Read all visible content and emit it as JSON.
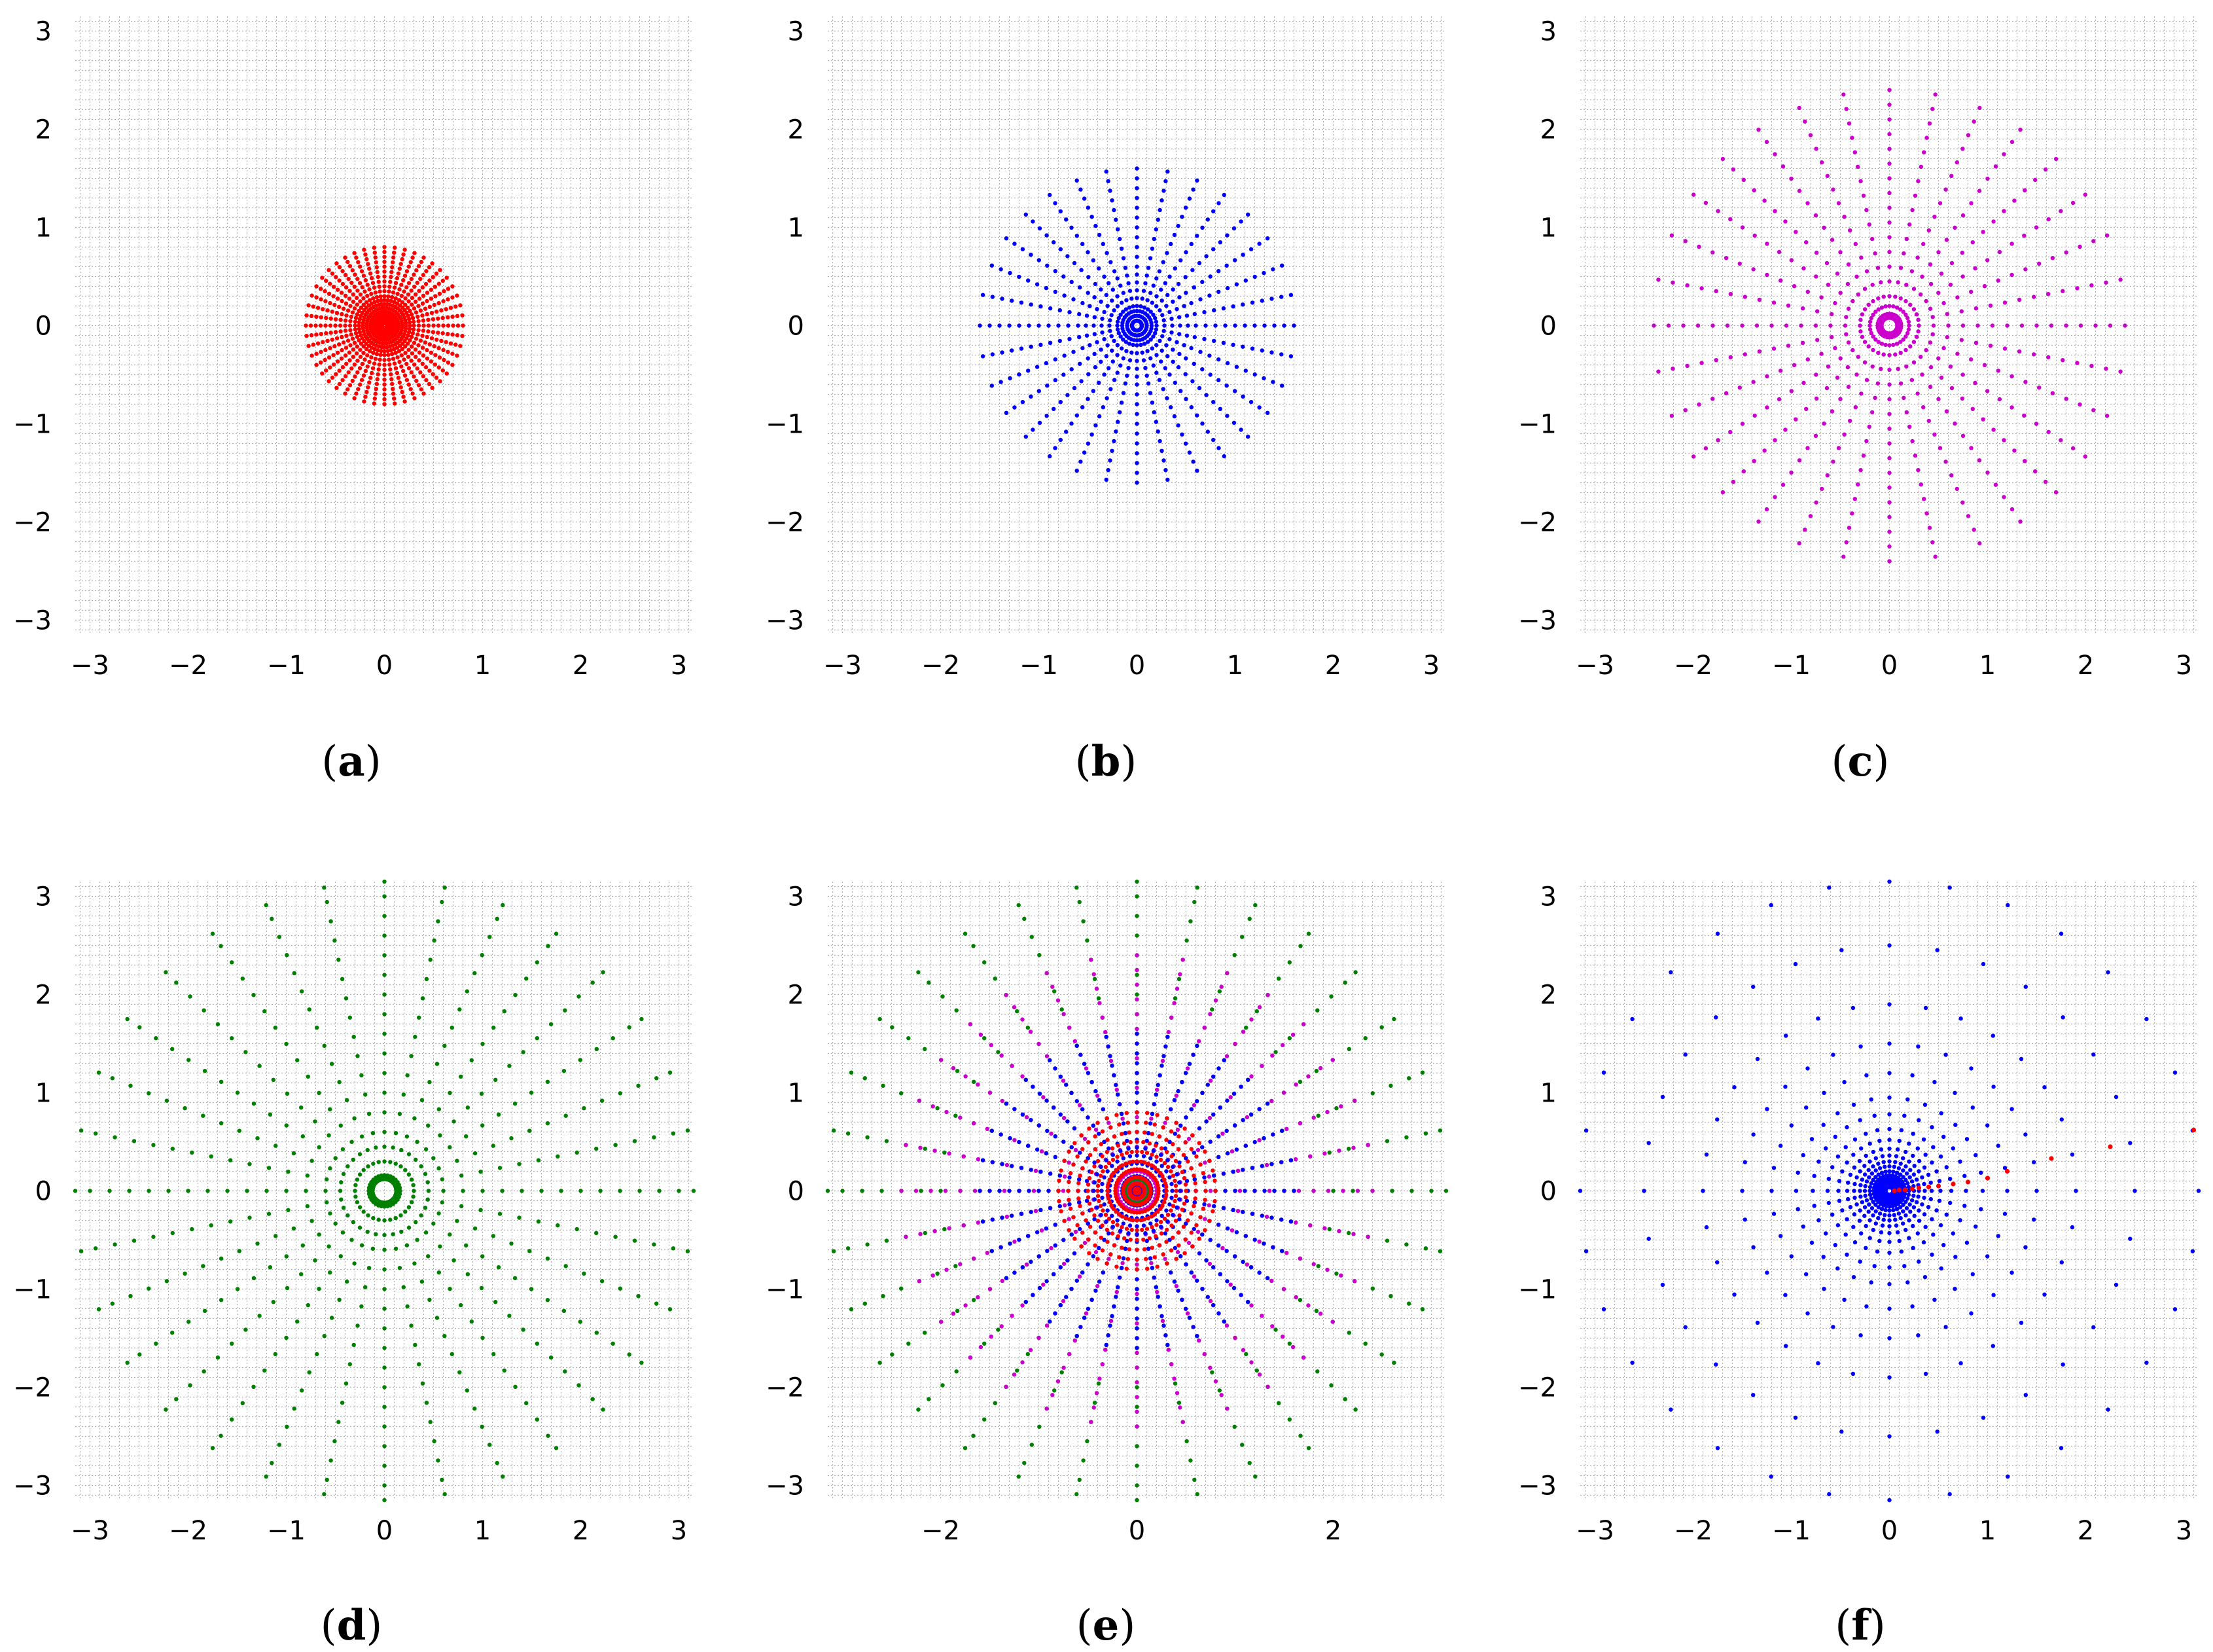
{
  "chart_data": [
    {
      "type": "scatter",
      "label": "(a)",
      "label_letter": "a",
      "title": "",
      "xlabel": "",
      "ylabel": "",
      "xlim": [
        -3.15,
        3.15
      ],
      "ylim": [
        -3.15,
        3.15
      ],
      "xticks": [
        "−3",
        "−2",
        "−1",
        "0",
        "1",
        "2",
        "3"
      ],
      "xtick_values": [
        -3,
        -2,
        -1,
        0,
        1,
        2,
        3
      ],
      "yticks": [
        "−3",
        "−2",
        "−1",
        "0",
        "1",
        "2",
        "3"
      ],
      "ytick_values": [
        -3,
        -2,
        -1,
        0,
        1,
        2,
        3
      ],
      "grid": true,
      "series": [
        {
          "color": "#ff0000",
          "pattern": "polar-grid",
          "rays": 48,
          "radii": [
            0.025,
            0.05,
            0.075,
            0.1,
            0.14,
            0.18,
            0.22,
            0.26,
            0.3,
            0.35,
            0.4,
            0.45,
            0.5,
            0.55,
            0.6,
            0.65,
            0.7,
            0.75,
            0.8
          ]
        }
      ]
    },
    {
      "type": "scatter",
      "label": "(b)",
      "label_letter": "b",
      "title": "",
      "xlabel": "",
      "ylabel": "",
      "xlim": [
        -3.15,
        3.15
      ],
      "ylim": [
        -3.15,
        3.15
      ],
      "xticks": [
        "−3",
        "−2",
        "−1",
        "0",
        "1",
        "2",
        "3"
      ],
      "xtick_values": [
        -3,
        -2,
        -1,
        0,
        1,
        2,
        3
      ],
      "yticks": [
        "−3",
        "−2",
        "−1",
        "0",
        "1",
        "2",
        "3"
      ],
      "ytick_values": [
        -3,
        -2,
        -1,
        0,
        1,
        2,
        3
      ],
      "grid": true,
      "series": [
        {
          "color": "#0000ff",
          "pattern": "polar-grid",
          "rays": 32,
          "radii": [
            0.05,
            0.1,
            0.15,
            0.2,
            0.28,
            0.36,
            0.44,
            0.52,
            0.6,
            0.7,
            0.8,
            0.9,
            1.0,
            1.1,
            1.2,
            1.3,
            1.4,
            1.5,
            1.6
          ]
        }
      ]
    },
    {
      "type": "scatter",
      "label": "(c)",
      "label_letter": "c",
      "title": "",
      "xlabel": "",
      "ylabel": "",
      "xlim": [
        -3.15,
        3.15
      ],
      "ylim": [
        -3.15,
        3.15
      ],
      "xticks": [
        "−3",
        "−2",
        "−1",
        "0",
        "1",
        "2",
        "3"
      ],
      "xtick_values": [
        -3,
        -2,
        -1,
        0,
        1,
        2,
        3
      ],
      "yticks": [
        "−3",
        "−2",
        "−1",
        "0",
        "1",
        "2",
        "3"
      ],
      "ytick_values": [
        -3,
        -2,
        -1,
        0,
        1,
        2,
        3
      ],
      "grid": true,
      "series": [
        {
          "color": "#cc00cc",
          "pattern": "polar-grid",
          "rays": 32,
          "radii": [
            0.08,
            0.1,
            0.12,
            0.2,
            0.3,
            0.45,
            0.6,
            0.75,
            0.9,
            1.05,
            1.2,
            1.35,
            1.5,
            1.65,
            1.8,
            1.95,
            2.1,
            2.25,
            2.4
          ]
        }
      ]
    },
    {
      "type": "scatter",
      "label": "(d)",
      "label_letter": "d",
      "title": "",
      "xlabel": "",
      "ylabel": "",
      "xlim": [
        -3.15,
        3.15
      ],
      "ylim": [
        -3.15,
        3.15
      ],
      "xticks": [
        "−3",
        "−2",
        "−1",
        "0",
        "1",
        "2",
        "3"
      ],
      "xtick_values": [
        -3,
        -2,
        -1,
        0,
        1,
        2,
        3
      ],
      "yticks": [
        "−3",
        "−2",
        "−1",
        "0",
        "1",
        "2",
        "3"
      ],
      "ytick_values": [
        -3,
        -2,
        -1,
        0,
        1,
        2,
        3
      ],
      "grid": true,
      "series": [
        {
          "color": "#008000",
          "pattern": "polar-grid",
          "rays": 32,
          "radii": [
            0.12,
            0.14,
            0.16,
            0.3,
            0.45,
            0.6,
            0.8,
            1.0,
            1.2,
            1.4,
            1.6,
            1.8,
            2.0,
            2.2,
            2.4,
            2.6,
            2.8,
            3.0,
            3.15
          ]
        }
      ]
    },
    {
      "type": "scatter",
      "label": "(e)",
      "label_letter": "e",
      "title": "",
      "xlabel": "",
      "ylabel": "",
      "xlim": [
        -3.15,
        3.15
      ],
      "ylim": [
        -3.15,
        3.15
      ],
      "xticks": [
        "−2",
        "0",
        "2"
      ],
      "xtick_values": [
        -2,
        0,
        2
      ],
      "yticks": [
        "−3",
        "−2",
        "−1",
        "0",
        "1",
        "2",
        "3"
      ],
      "ytick_values": [
        -3,
        -2,
        -1,
        0,
        1,
        2,
        3
      ],
      "grid": true,
      "series": [
        {
          "color": "#008000",
          "pattern": "polar-grid",
          "rays": 32,
          "radii": [
            0.12,
            0.3,
            0.45,
            0.6,
            0.8,
            1.0,
            1.2,
            1.4,
            1.6,
            1.8,
            2.0,
            2.2,
            2.4,
            2.6,
            2.8,
            3.0,
            3.15
          ]
        },
        {
          "color": "#cc00cc",
          "pattern": "polar-grid",
          "rays": 32,
          "radii": [
            0.08,
            0.2,
            0.3,
            0.45,
            0.6,
            0.75,
            0.9,
            1.05,
            1.2,
            1.35,
            1.5,
            1.65,
            1.8,
            1.95,
            2.1,
            2.25,
            2.4
          ]
        },
        {
          "color": "#0000ff",
          "pattern": "polar-grid",
          "rays": 32,
          "radii": [
            0.05,
            0.15,
            0.28,
            0.36,
            0.44,
            0.52,
            0.6,
            0.7,
            0.8,
            0.9,
            1.0,
            1.1,
            1.2,
            1.3,
            1.4,
            1.5,
            1.6
          ]
        },
        {
          "color": "#ff0000",
          "pattern": "polar-grid",
          "rays": 48,
          "radii": [
            0.025,
            0.075,
            0.14,
            0.22,
            0.3,
            0.4,
            0.5,
            0.6,
            0.7,
            0.8
          ]
        }
      ]
    },
    {
      "type": "scatter",
      "label": "(f)",
      "label_letter": "f",
      "title": "",
      "xlabel": "",
      "ylabel": "",
      "xlim": [
        -3.15,
        3.15
      ],
      "ylim": [
        -3.15,
        3.15
      ],
      "xticks": [
        "−3",
        "−2",
        "−1",
        "0",
        "1",
        "2",
        "3"
      ],
      "xtick_values": [
        -3,
        -2,
        -1,
        0,
        1,
        2,
        3
      ],
      "yticks": [
        "−3",
        "−2",
        "−1",
        "0",
        "1",
        "2",
        "3"
      ],
      "ytick_values": [
        -3,
        -2,
        -1,
        0,
        1,
        2,
        3
      ],
      "grid": true,
      "series": [
        {
          "color": "#0000ff",
          "pattern": "polar-grid",
          "rays": 32,
          "radii": [
            0.04,
            0.07,
            0.1,
            0.13,
            0.16,
            0.2,
            0.25,
            0.3,
            0.36,
            0.43,
            0.52,
            0.63,
            0.78,
            0.95,
            1.2,
            1.5,
            1.9,
            2.5,
            3.15
          ]
        },
        {
          "color": "#ff0000",
          "pattern": "points",
          "x": [
            0.05,
            0.1,
            0.16,
            0.23,
            0.3,
            0.4,
            0.5,
            0.65,
            0.8,
            1.0,
            1.2,
            1.65,
            2.25,
            3.1
          ],
          "y": [
            0.0,
            0.01,
            0.01,
            0.02,
            0.03,
            0.04,
            0.05,
            0.07,
            0.09,
            0.13,
            0.2,
            0.33,
            0.45,
            0.62
          ]
        }
      ]
    }
  ]
}
